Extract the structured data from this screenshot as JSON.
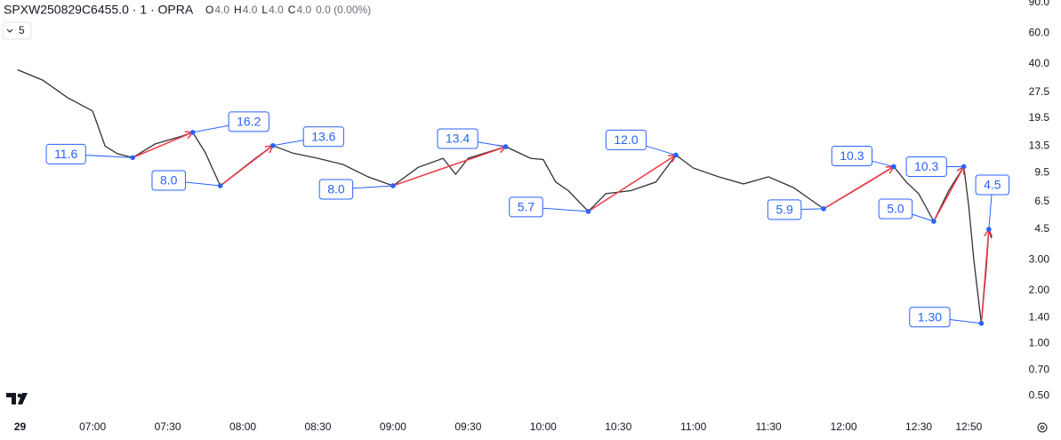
{
  "header": {
    "symbol": "SPXW250829C6455.0 · 1 · OPRA",
    "ohlc": [
      {
        "key": "O",
        "val": "4.0"
      },
      {
        "key": "H",
        "val": "4.0"
      },
      {
        "key": "L",
        "val": "4.0"
      },
      {
        "key": "C",
        "val": "4.0"
      }
    ],
    "change": "0.0 (0.00%)",
    "interval_button": "5"
  },
  "chart_data": {
    "type": "line",
    "log_scale": true,
    "color": "#333333",
    "x": [
      "06:30",
      "06:40",
      "06:50",
      "07:00",
      "07:05",
      "07:10",
      "07:16",
      "07:25",
      "07:35",
      "07:40",
      "07:45",
      "07:51",
      "08:00",
      "08:05",
      "08:12",
      "08:20",
      "08:30",
      "08:40",
      "08:50",
      "09:00",
      "09:10",
      "09:20",
      "09:25",
      "09:30",
      "09:45",
      "09:55",
      "10:00",
      "10:05",
      "10:10",
      "10:18",
      "10:25",
      "10:35",
      "10:45",
      "10:53",
      "11:00",
      "11:10",
      "11:20",
      "11:30",
      "11:40",
      "11:52",
      "12:00",
      "12:10",
      "12:20",
      "12:25",
      "12:30",
      "12:36",
      "12:42",
      "12:48",
      "12:50",
      "12:52",
      "12:55",
      "12:57",
      "12:58",
      "12:59"
    ],
    "values": [
      37,
      32.3,
      25.6,
      21.5,
      13.5,
      12.2,
      11.6,
      13.9,
      15.3,
      16.2,
      12.4,
      8.0,
      10.1,
      11.5,
      13.6,
      12.3,
      11.5,
      10.6,
      9.0,
      8.0,
      10.2,
      11.5,
      9.3,
      11.5,
      13.4,
      11.5,
      11.3,
      8.4,
      7.5,
      5.7,
      7.2,
      7.5,
      8.4,
      12.0,
      10.1,
      9.0,
      8.2,
      9.0,
      7.8,
      5.9,
      6.9,
      8.4,
      10.3,
      8.4,
      7.2,
      5.0,
      7.5,
      10.3,
      6.1,
      3.0,
      1.3,
      2.7,
      4.5,
      4.0
    ],
    "annotations": [
      {
        "x": "07:16",
        "value": 11.6,
        "label": "11.6"
      },
      {
        "x": "07:40",
        "value": 16.2,
        "label": "16.2"
      },
      {
        "x": "07:51",
        "value": 8.0,
        "label": "8.0"
      },
      {
        "x": "08:12",
        "value": 13.6,
        "label": "13.6"
      },
      {
        "x": "09:00",
        "value": 8.0,
        "label": "8.0"
      },
      {
        "x": "09:45",
        "value": 13.4,
        "label": "13.4"
      },
      {
        "x": "10:18",
        "value": 5.7,
        "label": "5.7"
      },
      {
        "x": "10:53",
        "value": 12.0,
        "label": "12.0"
      },
      {
        "x": "11:52",
        "value": 5.9,
        "label": "5.9"
      },
      {
        "x": "12:20",
        "value": 10.3,
        "label": "10.3"
      },
      {
        "x": "12:36",
        "value": 5.0,
        "label": "5.0"
      },
      {
        "x": "12:48",
        "value": 10.3,
        "label": "10.3"
      },
      {
        "x": "12:55",
        "value": 1.3,
        "label": "1.30"
      },
      {
        "x": "12:58",
        "value": 4.5,
        "label": "4.5"
      }
    ],
    "annotation_color": "#2962ff",
    "arrow_color": "#f23645",
    "xlim": [
      "06:23",
      "13:08"
    ],
    "xticks": [
      {
        "value": "06:31",
        "label": "29"
      },
      "07:00",
      "07:30",
      "08:00",
      "08:30",
      "09:00",
      "09:30",
      "10:00",
      "10:30",
      "11:00",
      "11:30",
      "12:00",
      "12:30",
      "12:50"
    ],
    "ylim": [
      0.42,
      93
    ],
    "yticks": [
      {
        "value": 0.5,
        "label": "0.50"
      },
      {
        "value": 0.7,
        "label": "0.70"
      },
      {
        "value": 1,
        "label": "1.00"
      },
      {
        "value": 1.4,
        "label": "1.40"
      },
      {
        "value": 2,
        "label": "2.00"
      },
      {
        "value": 3,
        "label": "3.00"
      },
      4.5,
      6.5,
      9.5,
      13.5,
      19.5,
      27.5,
      {
        "value": 40,
        "label": "40.0"
      },
      {
        "value": 60,
        "label": "60.0"
      },
      {
        "value": 90,
        "label": "90.0"
      }
    ]
  }
}
